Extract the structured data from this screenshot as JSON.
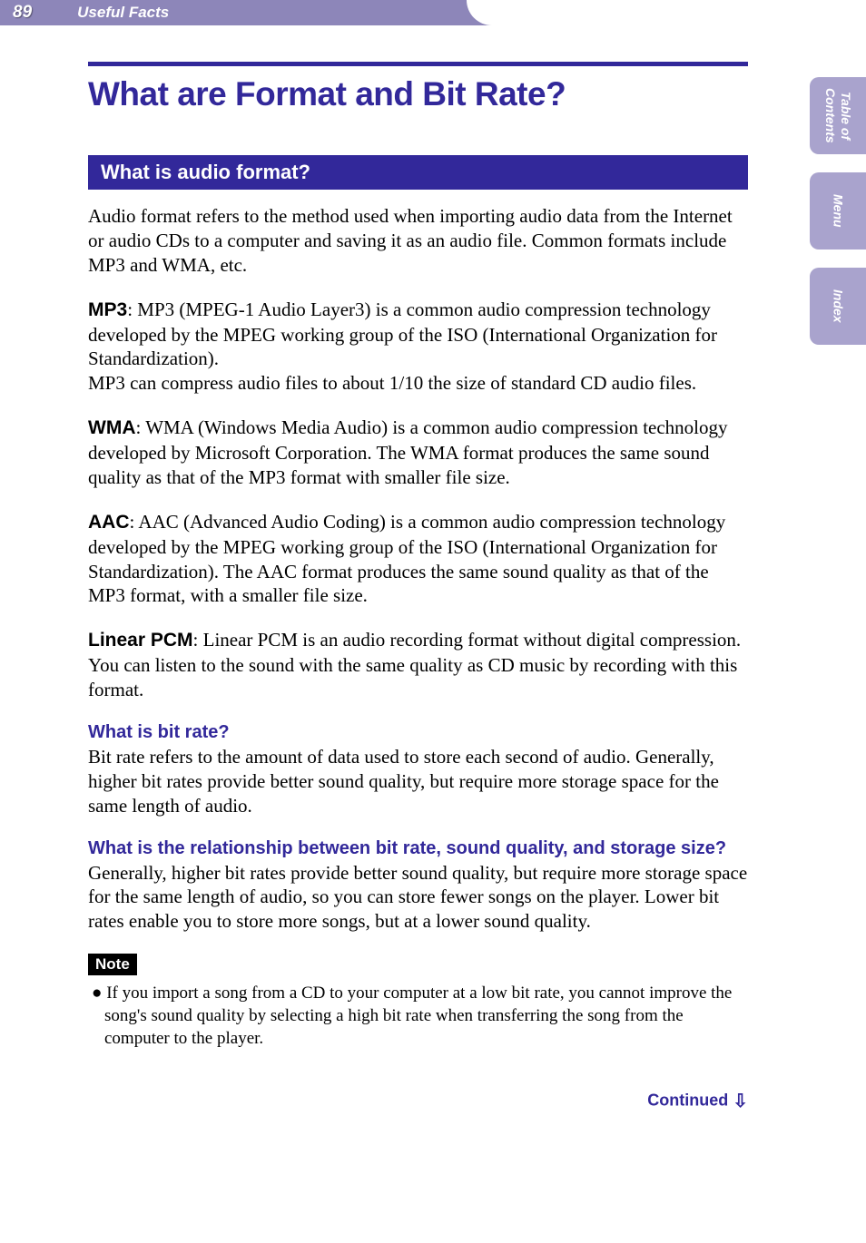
{
  "header": {
    "page_number": "89",
    "section": "Useful Facts",
    "bg_color": "#8d86b9"
  },
  "side_tabs": [
    {
      "label": "Table of\nContents"
    },
    {
      "label": "Menu"
    },
    {
      "label": "Index"
    }
  ],
  "title": "What are Format and Bit Rate?",
  "section_heading": "What is audio format?",
  "intro_para": "Audio format refers to the method used when importing audio data from the Internet or audio CDs to a computer and saving it as an audio file. Common formats include MP3 and WMA, etc.",
  "formats": {
    "mp3_label": "MP3",
    "mp3_text": ": MP3 (MPEG-1 Audio Layer3) is a common audio compression technology developed by the MPEG working group of the ISO (International Organization for Standardization).\nMP3 can compress audio files to about 1/10 the size of standard CD audio files.",
    "wma_label": "WMA",
    "wma_text": ": WMA (Windows Media Audio) is a common audio compression technology developed by Microsoft Corporation. The WMA format produces the same sound quality as that of the MP3 format with smaller file size.",
    "aac_label": "AAC",
    "aac_text": ": AAC (Advanced Audio Coding) is a common audio compression technology developed by the MPEG working group of the ISO (International Organization for Standardization). The AAC format produces the same sound quality as that of the MP3 format, with a smaller file size.",
    "lpcm_label": "Linear PCM",
    "lpcm_text": ": Linear PCM is an audio recording format without digital compression. You can listen to the sound with the same quality as CD music by recording with this format."
  },
  "bitrate": {
    "heading": "What is bit rate?",
    "text": "Bit rate refers to the amount of data used to store each second of audio. Generally, higher bit rates provide better sound quality, but require more storage space for the same length of audio."
  },
  "relationship": {
    "heading": "What is the relationship between bit rate, sound quality, and storage size?",
    "text": "Generally, higher bit rates provide better sound quality, but require more storage space for the same length of audio, so you can store fewer songs on the player. Lower bit rates enable you to store more songs, but at a lower sound quality."
  },
  "note": {
    "label": "Note",
    "bullet": "●",
    "text": "If you import a song from a CD to your computer at a low bit rate, you cannot improve the song's sound quality by selecting a high bit rate when transferring the song from the computer to the player."
  },
  "continued": {
    "label": "Continued",
    "arrow": "⇩"
  },
  "colors": {
    "primary": "#32289a",
    "tab_bg": "#a9a3cd"
  }
}
